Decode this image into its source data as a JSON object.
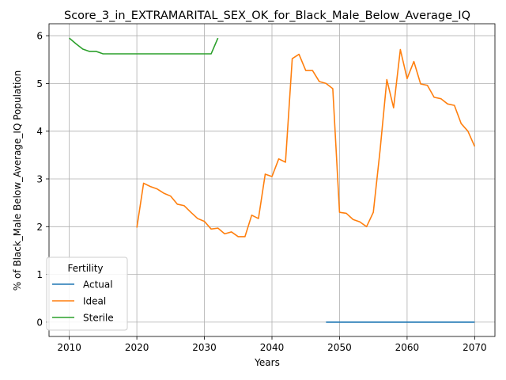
{
  "chart_data": {
    "type": "line",
    "title": "Score_3_in_EXTRAMARITAL_SEX_OK_for_Black_Male_Below_Average_IQ",
    "xlabel": "Years",
    "ylabel": "% of Black_Male Below_Average_IQ Population",
    "xlim": [
      2007,
      2073
    ],
    "ylim": [
      -0.3,
      6.25
    ],
    "xticks": [
      2010,
      2020,
      2030,
      2040,
      2050,
      2060,
      2070
    ],
    "yticks": [
      0,
      1,
      2,
      3,
      4,
      5,
      6
    ],
    "grid": true,
    "legend": {
      "title": "Fertility",
      "position": "lower-left"
    },
    "series": [
      {
        "name": "Actual",
        "color": "#1f77b4",
        "x": [
          2048,
          2049,
          2050,
          2051,
          2052,
          2053,
          2054,
          2055,
          2056,
          2057,
          2058,
          2059,
          2060,
          2061,
          2062,
          2063,
          2064,
          2065,
          2066,
          2067,
          2068,
          2069,
          2070
        ],
        "y": [
          0,
          0,
          0,
          0,
          0,
          0,
          0,
          0,
          0,
          0,
          0,
          0,
          0,
          0,
          0,
          0,
          0,
          0,
          0,
          0,
          0,
          0,
          0
        ]
      },
      {
        "name": "Ideal",
        "color": "#ff7f0e",
        "x": [
          2020,
          2021,
          2022,
          2023,
          2024,
          2025,
          2026,
          2027,
          2028,
          2029,
          2030,
          2031,
          2032,
          2033,
          2034,
          2035,
          2036,
          2037,
          2038,
          2039,
          2040,
          2041,
          2042,
          2043,
          2044,
          2045,
          2046,
          2047,
          2048,
          2049,
          2050,
          2051,
          2052,
          2053,
          2054,
          2055,
          2056,
          2057,
          2058,
          2059,
          2060,
          2061,
          2062,
          2063,
          2064,
          2065,
          2066,
          2067,
          2068,
          2069,
          2070
        ],
        "y": [
          1.98,
          2.91,
          2.84,
          2.79,
          2.7,
          2.64,
          2.47,
          2.44,
          2.3,
          2.17,
          2.11,
          1.95,
          1.97,
          1.85,
          1.89,
          1.79,
          1.79,
          2.24,
          2.17,
          3.1,
          3.05,
          3.42,
          3.35,
          5.52,
          5.61,
          5.27,
          5.27,
          5.04,
          5.0,
          4.89,
          2.3,
          2.28,
          2.15,
          2.1,
          2.0,
          2.3,
          3.6,
          5.08,
          4.49,
          5.71,
          5.1,
          5.46,
          4.99,
          4.96,
          4.71,
          4.68,
          4.57,
          4.54,
          4.16,
          4.0,
          3.68
        ]
      },
      {
        "name": "Sterile",
        "color": "#2ca02c",
        "x": [
          2010,
          2011,
          2012,
          2013,
          2014,
          2015,
          2016,
          2017,
          2018,
          2019,
          2020,
          2021,
          2022,
          2023,
          2024,
          2025,
          2026,
          2027,
          2028,
          2029,
          2030,
          2031,
          2032
        ],
        "y": [
          5.95,
          5.83,
          5.72,
          5.67,
          5.67,
          5.62,
          5.62,
          5.62,
          5.62,
          5.62,
          5.62,
          5.62,
          5.62,
          5.62,
          5.62,
          5.62,
          5.62,
          5.62,
          5.62,
          5.62,
          5.62,
          5.62,
          5.95
        ]
      }
    ]
  }
}
